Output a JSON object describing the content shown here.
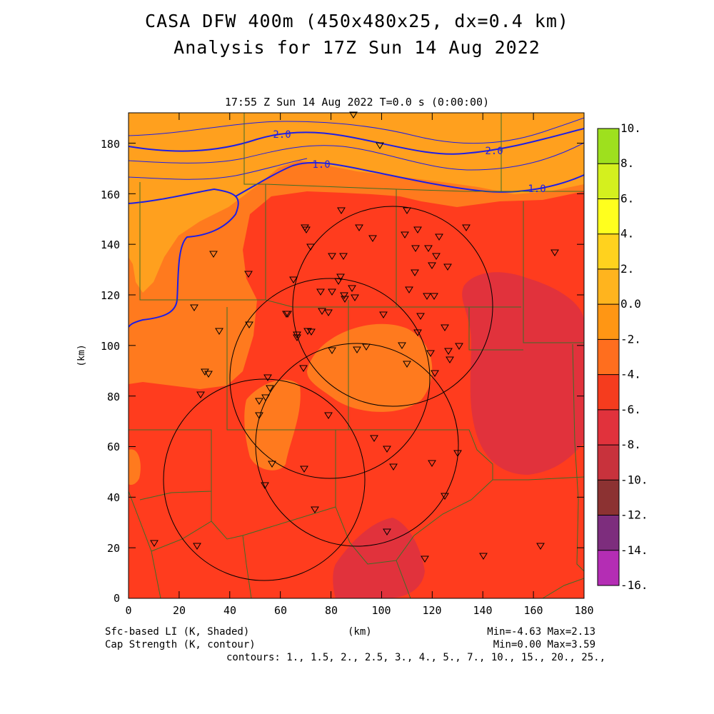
{
  "title_line1": "CASA DFW 400m (450x480x25, dx=0.4 km)",
  "title_line2": "Analysis for 17Z Sun 14 Aug 2022",
  "subtitle": "17:55 Z Sun 14 Aug 2022    T=0.0 s (0:00:00)",
  "x_axis": {
    "label": "(km)",
    "ticks": [
      "0",
      "20",
      "40",
      "60",
      "80",
      "100",
      "120",
      "140",
      "160",
      "180"
    ]
  },
  "y_axis": {
    "label": "(km)",
    "ticks": [
      "0",
      "20",
      "40",
      "60",
      "80",
      "100",
      "120",
      "140",
      "160",
      "180"
    ]
  },
  "colorbar": {
    "labels": [
      "10.",
      "8.",
      "6.",
      "4.",
      "2.",
      "0.0",
      "-2.",
      "-4.",
      "-6.",
      "-8.",
      "-10.",
      "-12.",
      "-14.",
      "-16."
    ],
    "colors": [
      "#9ee01e",
      "#d4f01e",
      "#ffff1e",
      "#ffd21e",
      "#ffb41e",
      "#ff9614",
      "#ff6e1e",
      "#f53c1e",
      "#e1323c",
      "#c8323c",
      "#8c3232",
      "#7d2d7d",
      "#b42db4",
      "#dc3cdc"
    ]
  },
  "contour_labels": [
    "2.0",
    "1.0",
    "2.0",
    "1.0"
  ],
  "field_colors": {
    "orange_high": "#ffa01e",
    "orange": "#ff7a1e",
    "red": "#ff3c1e",
    "dark_red": "#e1323c",
    "contour": "#1e1ee6"
  },
  "footer": {
    "left1": "Sfc-based LI (K, Shaded)",
    "left2": "Cap Strength (K, contour)",
    "center": "(km)",
    "right1": "Min=-4.63 Max=2.13",
    "right2": "Min=0.00 Max=3.59",
    "contours": "contours: 1., 1.5, 2., 2.5, 3., 4., 5., 7., 10., 15., 20., 25.,"
  }
}
